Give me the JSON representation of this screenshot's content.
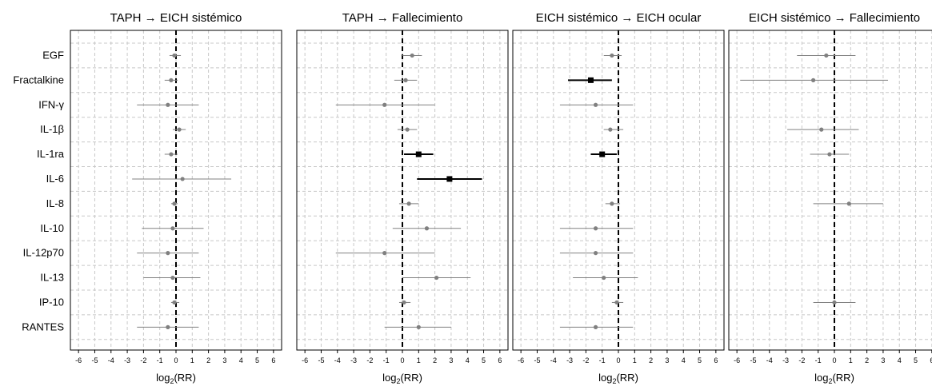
{
  "chart_data": {
    "type": "forest",
    "xlabel_main": "log",
    "xlabel_sub": "2",
    "xlabel_suffix": "(RR)",
    "xlim": [
      -6.5,
      6.5
    ],
    "x_ticks": [
      -6,
      -5,
      -4,
      -3,
      -2,
      -1,
      0,
      1,
      2,
      3,
      4,
      5,
      6
    ],
    "reference_line": 0,
    "grid": true,
    "categories": [
      "EGF",
      "Fractalkine",
      "IFN-γ",
      "IL-1β",
      "IL-1ra",
      "IL-6",
      "IL-8",
      "IL-10",
      "IL-12p70",
      "IL-13",
      "IP-10",
      "RANTES"
    ],
    "colors": {
      "significant": "#000000",
      "non_significant": "#808080",
      "grid": "#c8c8c8"
    },
    "panels": [
      {
        "title": "TAPH → EICH sistémico",
        "estimates": [
          {
            "est": -0.1,
            "lo": -0.4,
            "hi": 0.3,
            "sig": false
          },
          {
            "est": -0.3,
            "lo": -0.7,
            "hi": 0.1,
            "sig": false
          },
          {
            "est": -0.5,
            "lo": -2.4,
            "hi": 1.4,
            "sig": false
          },
          {
            "est": 0.2,
            "lo": -0.2,
            "hi": 0.6,
            "sig": false
          },
          {
            "est": -0.3,
            "lo": -0.7,
            "hi": 0.1,
            "sig": false
          },
          {
            "est": 0.4,
            "lo": -2.7,
            "hi": 3.4,
            "sig": false
          },
          {
            "est": -0.1,
            "lo": -0.3,
            "hi": 0.1,
            "sig": false
          },
          {
            "est": -0.2,
            "lo": -2.1,
            "hi": 1.7,
            "sig": false
          },
          {
            "est": -0.5,
            "lo": -2.4,
            "hi": 1.4,
            "sig": false
          },
          {
            "est": -0.2,
            "lo": -2.0,
            "hi": 1.5,
            "sig": false
          },
          {
            "est": -0.1,
            "lo": -0.3,
            "hi": 0.2,
            "sig": false
          },
          {
            "est": -0.5,
            "lo": -2.4,
            "hi": 1.4,
            "sig": false
          }
        ]
      },
      {
        "title": "TAPH → Fallecimiento",
        "estimates": [
          {
            "est": 0.6,
            "lo": 0.0,
            "hi": 1.2,
            "sig": false
          },
          {
            "est": 0.2,
            "lo": -0.5,
            "hi": 0.9,
            "sig": false
          },
          {
            "est": -1.1,
            "lo": -4.1,
            "hi": 2.0,
            "sig": false
          },
          {
            "est": 0.3,
            "lo": -0.3,
            "hi": 0.9,
            "sig": false
          },
          {
            "est": 1.0,
            "lo": 0.1,
            "hi": 1.9,
            "sig": true
          },
          {
            "est": 2.9,
            "lo": 0.9,
            "hi": 4.9,
            "sig": true
          },
          {
            "est": 0.4,
            "lo": -0.2,
            "hi": 1.0,
            "sig": false
          },
          {
            "est": 1.5,
            "lo": -0.6,
            "hi": 3.6,
            "sig": false
          },
          {
            "est": -1.1,
            "lo": -4.1,
            "hi": 2.0,
            "sig": false
          },
          {
            "est": 2.1,
            "lo": 0.0,
            "hi": 4.2,
            "sig": false
          },
          {
            "est": 0.1,
            "lo": -0.2,
            "hi": 0.5,
            "sig": false
          },
          {
            "est": 1.0,
            "lo": -1.1,
            "hi": 3.0,
            "sig": false
          }
        ]
      },
      {
        "title": "EICH sistémico → EICH ocular",
        "estimates": [
          {
            "est": -0.4,
            "lo": -0.9,
            "hi": 0.2,
            "sig": false
          },
          {
            "est": -1.7,
            "lo": -3.1,
            "hi": -0.4,
            "sig": true
          },
          {
            "est": -1.4,
            "lo": -3.6,
            "hi": 0.9,
            "sig": false
          },
          {
            "est": -0.5,
            "lo": -0.9,
            "hi": 0.3,
            "sig": false
          },
          {
            "est": -1.0,
            "lo": -1.7,
            "hi": -0.1,
            "sig": true
          },
          null,
          {
            "est": -0.4,
            "lo": -0.8,
            "hi": 0.1,
            "sig": false
          },
          {
            "est": -1.4,
            "lo": -3.6,
            "hi": 0.9,
            "sig": false
          },
          {
            "est": -1.4,
            "lo": -3.6,
            "hi": 0.9,
            "sig": false
          },
          {
            "est": -0.9,
            "lo": -2.8,
            "hi": 1.2,
            "sig": false
          },
          {
            "est": -0.1,
            "lo": -0.4,
            "hi": 0.3,
            "sig": false
          },
          {
            "est": -1.4,
            "lo": -3.6,
            "hi": 0.9,
            "sig": false
          }
        ]
      },
      {
        "title": "EICH sistémico → Fallecimiento",
        "estimates": [
          {
            "est": -0.5,
            "lo": -2.3,
            "hi": 1.3,
            "sig": false
          },
          {
            "est": -1.3,
            "lo": -5.8,
            "hi": 3.3,
            "sig": false
          },
          null,
          {
            "est": -0.8,
            "lo": -2.9,
            "hi": 1.5,
            "sig": false
          },
          {
            "est": -0.3,
            "lo": -1.5,
            "hi": 0.9,
            "sig": false
          },
          null,
          {
            "est": 0.9,
            "lo": -1.3,
            "hi": 3.0,
            "sig": false
          },
          null,
          null,
          null,
          {
            "est": 0.0,
            "lo": -1.3,
            "hi": 1.3,
            "sig": false
          },
          null
        ]
      }
    ]
  }
}
